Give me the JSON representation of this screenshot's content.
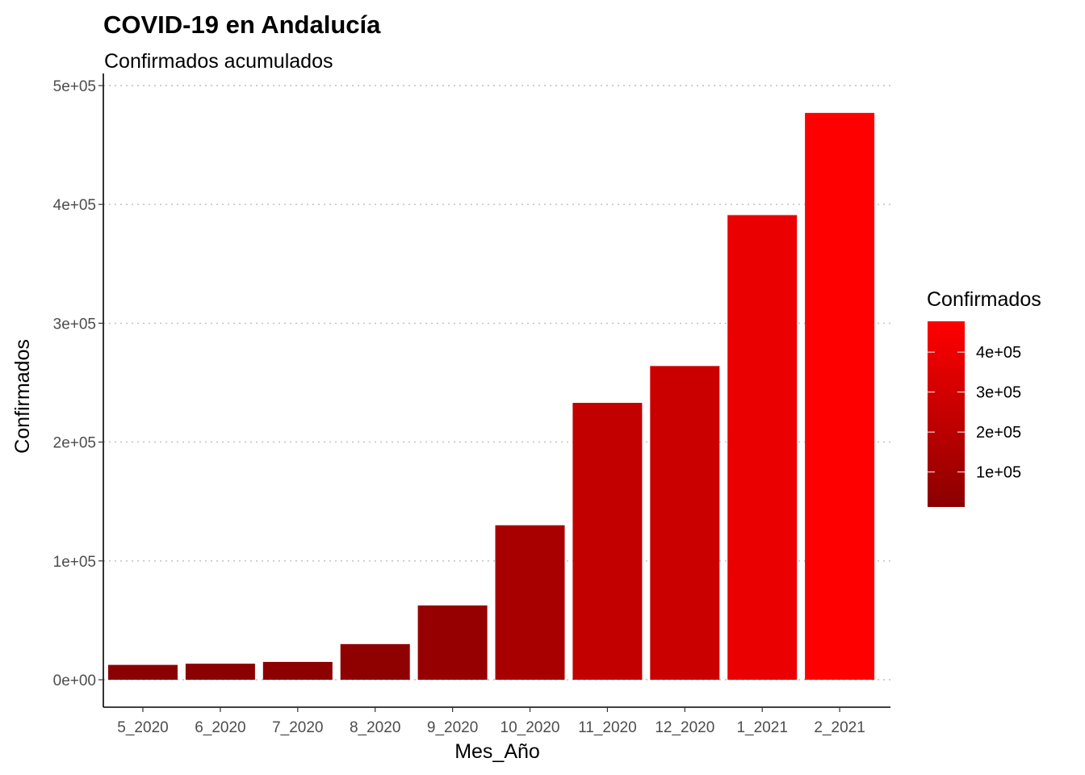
{
  "chart_data": {
    "type": "bar",
    "title": "COVID-19 en Andalucía",
    "subtitle": "Confirmados acumulados",
    "xlabel": "Mes_Año",
    "ylabel": "Confirmados",
    "categories": [
      "5_2020",
      "6_2020",
      "7_2020",
      "8_2020",
      "9_2020",
      "10_2020",
      "11_2020",
      "12_2020",
      "1_2021",
      "2_2021"
    ],
    "values": [
      12500,
      13500,
      15000,
      30000,
      62500,
      130000,
      233000,
      264000,
      391000,
      477000
    ],
    "ylim": [
      -23000,
      500000
    ],
    "yticks": [
      0,
      100000,
      200000,
      300000,
      400000,
      500000
    ],
    "ytick_labels": [
      "0e+00",
      "1e+05",
      "2e+05",
      "3e+05",
      "4e+05",
      "5e+05"
    ],
    "grid": "horizontal-dotted",
    "legend": {
      "title": "Confirmados",
      "position": "right",
      "type": "colorbar",
      "range": [
        12500,
        477000
      ],
      "ticks": [
        100000,
        200000,
        300000,
        400000
      ],
      "tick_labels": [
        "1e+05",
        "2e+05",
        "3e+05",
        "4e+05"
      ]
    },
    "colors": {
      "low": "#8b0000",
      "high": "#ff0000",
      "grid": "#bebebe",
      "axis": "#000000"
    }
  }
}
